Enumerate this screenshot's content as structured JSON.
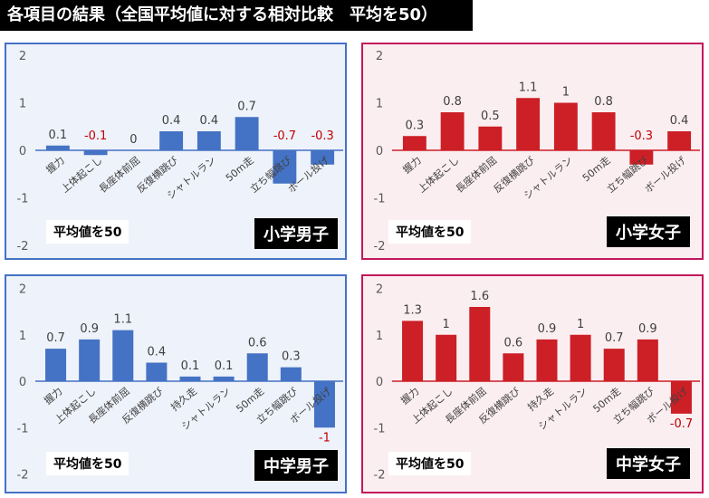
{
  "title": "各項目の結果（全国平均値に対する相対比較　平均を50）",
  "colors": {
    "male_bar": "#4472c4",
    "female_bar": "#cc1f26",
    "male_bg": "#eef2fa",
    "female_bg": "#fbeef1",
    "male_border": "#4472c4",
    "female_border": "#c2185b",
    "negative_label": "#c00000",
    "axis_label": "#595959"
  },
  "panels": [
    {
      "group": "小学男子",
      "average_note": "平均値を50",
      "color_key": "male",
      "value_labels": [
        "0.1",
        "-0.1",
        "0",
        "0.4",
        "0.4",
        "0.7",
        "-0.7",
        "-0.3"
      ],
      "chart_data": {
        "type": "bar",
        "categories": [
          "握力",
          "上体起こし",
          "長座体前屈",
          "反復横跳び",
          "シャトルラン",
          "50m走",
          "立ち幅跳び",
          "ボール投げ"
        ],
        "values": [
          0.1,
          -0.1,
          0,
          0.4,
          0.4,
          0.7,
          -0.7,
          -0.3
        ],
        "ylim": [
          -2,
          2
        ],
        "yticks": [
          "2",
          "1",
          "0",
          "-1",
          "-2"
        ]
      }
    },
    {
      "group": "小学女子",
      "average_note": "平均値を50",
      "color_key": "female",
      "value_labels": [
        "0.3",
        "0.8",
        "0.5",
        "1.1",
        "1",
        "0.8",
        "-0.3",
        "0.4"
      ],
      "chart_data": {
        "type": "bar",
        "categories": [
          "握力",
          "上体起こし",
          "長座体前屈",
          "反復横跳び",
          "シャトルラン",
          "50m走",
          "立ち幅跳び",
          "ボール投げ"
        ],
        "values": [
          0.3,
          0.8,
          0.5,
          1.1,
          1,
          0.8,
          -0.3,
          0.4
        ],
        "ylim": [
          -2,
          2
        ],
        "yticks": [
          "2",
          "1",
          "0",
          "-1",
          "-2"
        ]
      }
    },
    {
      "group": "中学男子",
      "average_note": "平均値を50",
      "color_key": "male",
      "value_labels": [
        "0.7",
        "0.9",
        "1.1",
        "0.4",
        "0.1",
        "0.1",
        "0.6",
        "0.3",
        "-1"
      ],
      "chart_data": {
        "type": "bar",
        "categories": [
          "握力",
          "上体起こし",
          "長座体前屈",
          "反復横跳び",
          "持久走",
          "シャトルラン",
          "50m走",
          "立ち幅跳び",
          "ボール投げ"
        ],
        "values": [
          0.7,
          0.9,
          1.1,
          0.4,
          0.1,
          0.1,
          0.6,
          0.3,
          -1
        ],
        "ylim": [
          -2,
          2
        ],
        "yticks": [
          "2",
          "1",
          "0",
          "-1",
          "-2"
        ]
      }
    },
    {
      "group": "中学女子",
      "average_note": "平均値を50",
      "color_key": "female",
      "value_labels": [
        "1.3",
        "1",
        "1.6",
        "0.6",
        "0.9",
        "1",
        "0.7",
        "0.9",
        "-0.7"
      ],
      "chart_data": {
        "type": "bar",
        "categories": [
          "握力",
          "上体起こし",
          "長座体前屈",
          "反復横跳び",
          "持久走",
          "シャトルラン",
          "50m走",
          "立ち幅跳び",
          "ボール投げ"
        ],
        "values": [
          1.3,
          1,
          1.6,
          0.6,
          0.9,
          1,
          0.7,
          0.9,
          -0.7
        ],
        "ylim": [
          -2,
          2
        ],
        "yticks": [
          "2",
          "1",
          "0",
          "-1",
          "-2"
        ]
      }
    }
  ]
}
